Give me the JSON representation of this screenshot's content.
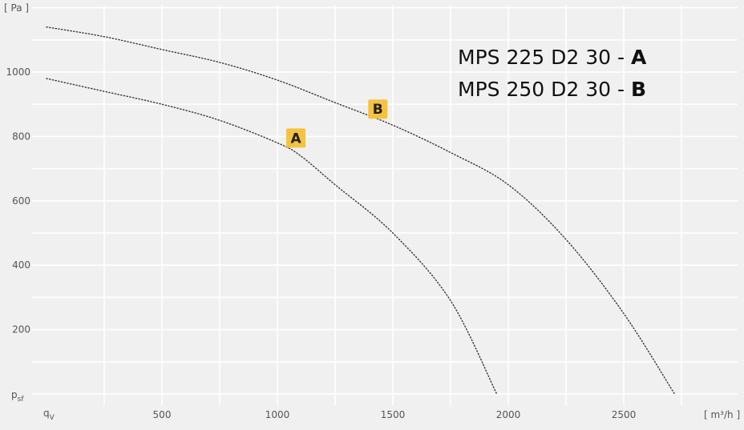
{
  "chart_data": {
    "type": "line",
    "y_unit_label": "[ Pa ]",
    "x_unit_label": "[ m³/h ]",
    "y_axis_symbol": "p",
    "y_axis_symbol_sub": "sf",
    "x_axis_symbol": "q",
    "x_axis_symbol_sub": "V",
    "xlim": [
      0,
      2700
    ],
    "ylim": [
      0,
      1200
    ],
    "x_ticks": [
      500,
      1000,
      1500,
      2000,
      2500
    ],
    "x_tick_labels": [
      "500",
      "1000",
      "1500",
      "2000",
      "2500"
    ],
    "y_ticks": [
      200,
      400,
      600,
      800,
      1000
    ],
    "y_tick_labels": [
      "200",
      "400",
      "600",
      "800",
      "1000"
    ],
    "grid": true,
    "line_style": "dotted",
    "line_color": "#333333",
    "series": [
      {
        "name": "A",
        "x": [
          0,
          250,
          500,
          750,
          1000,
          1100,
          1250,
          1500,
          1750,
          1950
        ],
        "y": [
          980,
          940,
          900,
          850,
          780,
          740,
          650,
          500,
          290,
          0
        ]
      },
      {
        "name": "B",
        "x": [
          0,
          250,
          500,
          750,
          1000,
          1250,
          1500,
          1750,
          2000,
          2250,
          2500,
          2720
        ],
        "y": [
          1140,
          1110,
          1070,
          1030,
          975,
          905,
          835,
          750,
          650,
          480,
          250,
          0
        ]
      }
    ],
    "annotations": [
      {
        "label": "A",
        "x": 1080,
        "y": 795,
        "series": "A",
        "color": "#f5c242"
      },
      {
        "label": "B",
        "x": 1435,
        "y": 885,
        "series": "B",
        "color": "#f5c242"
      }
    ],
    "legend": {
      "placement": "top-right",
      "entries": [
        {
          "text": "MPS 225 D2 30 - ",
          "letter": "A"
        },
        {
          "text": "MPS 250 D2 30 - ",
          "letter": "B"
        }
      ]
    }
  }
}
